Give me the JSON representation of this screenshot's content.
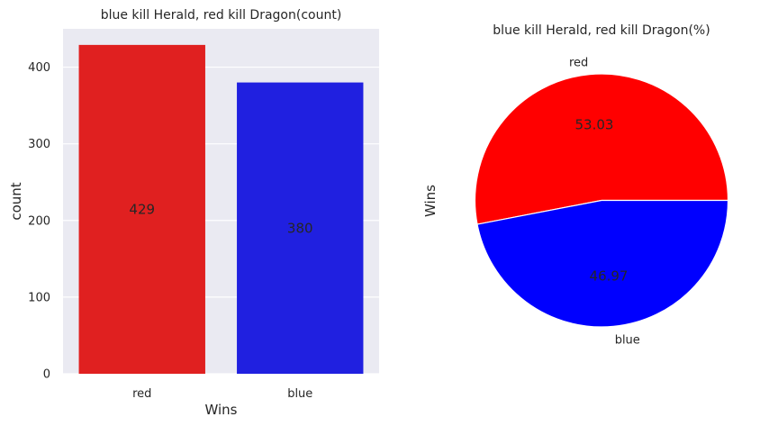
{
  "chart_data": [
    {
      "type": "bar",
      "title": "blue kill Herald, red kill Dragon(count)",
      "xlabel": "Wins",
      "ylabel": "count",
      "categories": [
        "red",
        "blue"
      ],
      "values": [
        429,
        380
      ],
      "data_labels": [
        "429",
        "380"
      ],
      "colors": [
        "#e02020",
        "#2020e0"
      ],
      "ylim": [
        0,
        450
      ],
      "yticks": [
        0,
        100,
        200,
        300,
        400
      ],
      "ytick_labels": [
        "0",
        "100",
        "200",
        "300",
        "400"
      ],
      "grid": true,
      "background": "#eaeaf2"
    },
    {
      "type": "pie",
      "title": "blue kill Herald, red kill Dragon(%)",
      "ylabel": "Wins",
      "labels": [
        "red",
        "blue"
      ],
      "values": [
        53.03,
        46.97
      ],
      "pct_labels": [
        "53.03",
        "46.97"
      ],
      "colors": [
        "#ff0000",
        "#0000ff"
      ]
    }
  ]
}
